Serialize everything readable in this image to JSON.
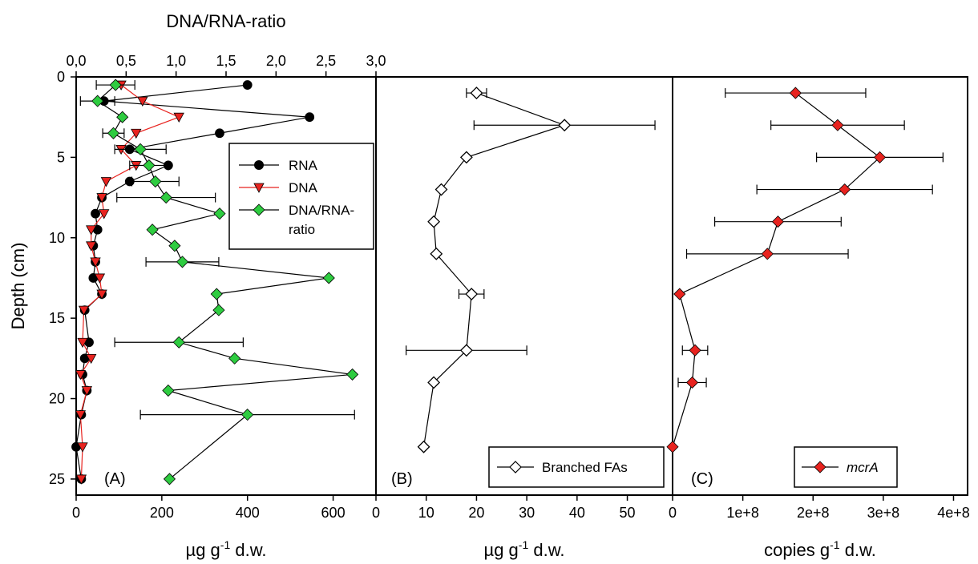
{
  "chart_data": [
    {
      "type": "scatter",
      "panel": "A",
      "panel_label": "(A)",
      "xlabel_main": "µg g",
      "xlabel_sup": "-1",
      "xlabel_tail": "  d.w.",
      "xlim": [
        0,
        700
      ],
      "xticks": [
        0,
        200,
        400,
        600
      ],
      "x2label": "DNA/RNA-ratio",
      "x2lim": [
        0,
        3.0
      ],
      "x2ticks": [
        "0,0",
        "0,5",
        "1,0",
        "1,5",
        "2,0",
        "2,5",
        "3,0"
      ],
      "ylabel": "Depth (cm)",
      "ylim": [
        0,
        26
      ],
      "yticks": [
        0,
        5,
        10,
        15,
        20,
        25
      ],
      "legend": [
        "RNA",
        "DNA",
        "DNA/RNA-",
        "ratio"
      ],
      "series": [
        {
          "name": "RNA",
          "axis": "bottom",
          "color": "#000000",
          "marker": "circle",
          "line_color": "#000000",
          "points": [
            {
              "x": 400,
              "y": 0.5,
              "err": 0
            },
            {
              "x": 65,
              "y": 1.5,
              "err": 0
            },
            {
              "x": 545,
              "y": 2.5,
              "err": 0
            },
            {
              "x": 335,
              "y": 3.5,
              "err": 0
            },
            {
              "x": 125,
              "y": 4.5,
              "err": 0
            },
            {
              "x": 215,
              "y": 5.5,
              "err": 0
            },
            {
              "x": 125,
              "y": 6.5,
              "err": 0
            },
            {
              "x": 60,
              "y": 7.5,
              "err": 0
            },
            {
              "x": 45,
              "y": 8.5,
              "err": 0
            },
            {
              "x": 50,
              "y": 9.5,
              "err": 0
            },
            {
              "x": 40,
              "y": 10.5,
              "err": 0
            },
            {
              "x": 45,
              "y": 11.5,
              "err": 0
            },
            {
              "x": 40,
              "y": 12.5,
              "err": 0
            },
            {
              "x": 60,
              "y": 13.5,
              "err": 0
            },
            {
              "x": 20,
              "y": 14.5,
              "err": 0
            },
            {
              "x": 30,
              "y": 16.5,
              "err": 0
            },
            {
              "x": 20,
              "y": 17.5,
              "err": 0
            },
            {
              "x": 15,
              "y": 18.5,
              "err": 0
            },
            {
              "x": 25,
              "y": 19.5,
              "err": 0
            },
            {
              "x": 12,
              "y": 21,
              "err": 0
            },
            {
              "x": 0,
              "y": 23,
              "err": 0
            },
            {
              "x": 12,
              "y": 25,
              "err": 0
            }
          ]
        },
        {
          "name": "DNA",
          "axis": "bottom",
          "color": "#e8231f",
          "marker": "triangle-down",
          "line_color": "#e8231f",
          "points": [
            {
              "x": 105,
              "y": 0.5,
              "err": 0
            },
            {
              "x": 155,
              "y": 1.5,
              "err": 0
            },
            {
              "x": 240,
              "y": 2.5,
              "err": 0
            },
            {
              "x": 140,
              "y": 3.5,
              "err": 0
            },
            {
              "x": 105,
              "y": 4.5,
              "err": 0
            },
            {
              "x": 140,
              "y": 5.5,
              "err": 0
            },
            {
              "x": 70,
              "y": 6.5,
              "err": 0
            },
            {
              "x": 60,
              "y": 7.5,
              "err": 0
            },
            {
              "x": 65,
              "y": 8.5,
              "err": 0
            },
            {
              "x": 35,
              "y": 9.5,
              "err": 0
            },
            {
              "x": 35,
              "y": 10.5,
              "err": 0
            },
            {
              "x": 45,
              "y": 11.5,
              "err": 0
            },
            {
              "x": 55,
              "y": 12.5,
              "err": 0
            },
            {
              "x": 60,
              "y": 13.5,
              "err": 0
            },
            {
              "x": 18,
              "y": 14.5,
              "err": 0
            },
            {
              "x": 15,
              "y": 16.5,
              "err": 0
            },
            {
              "x": 35,
              "y": 17.5,
              "err": 0
            },
            {
              "x": 10,
              "y": 18.5,
              "err": 0
            },
            {
              "x": 25,
              "y": 19.5,
              "err": 0
            },
            {
              "x": 10,
              "y": 21,
              "err": 0
            },
            {
              "x": 15,
              "y": 23,
              "err": 0
            },
            {
              "x": 12,
              "y": 25,
              "err": 0
            }
          ]
        },
        {
          "name": "DNA/RNA-ratio",
          "axis": "bottom",
          "color": "#2ecc40",
          "marker": "diamond",
          "line_color": "#000000",
          "points": [
            {
              "x": 92,
              "y": 0.5,
              "err": 45
            },
            {
              "x": 50,
              "y": 1.5,
              "err": 40
            },
            {
              "x": 108,
              "y": 2.5,
              "err": 0
            },
            {
              "x": 87,
              "y": 3.5,
              "err": 25
            },
            {
              "x": 150,
              "y": 4.5,
              "err": 60
            },
            {
              "x": 170,
              "y": 5.5,
              "err": 45
            },
            {
              "x": 185,
              "y": 6.5,
              "err": 55
            },
            {
              "x": 210,
              "y": 7.5,
              "err": 115
            },
            {
              "x": 335,
              "y": 8.5,
              "err": 0
            },
            {
              "x": 178,
              "y": 9.5,
              "err": 0
            },
            {
              "x": 230,
              "y": 10.5,
              "err": 0
            },
            {
              "x": 248,
              "y": 11.5,
              "err": 85
            },
            {
              "x": 590,
              "y": 12.5,
              "err": 0
            },
            {
              "x": 328,
              "y": 13.5,
              "err": 0
            },
            {
              "x": 333,
              "y": 14.5,
              "err": 0
            },
            {
              "x": 240,
              "y": 16.5,
              "err": 150
            },
            {
              "x": 370,
              "y": 17.5,
              "err": 0
            },
            {
              "x": 645,
              "y": 18.5,
              "err": 0
            },
            {
              "x": 215,
              "y": 19.5,
              "err": 0
            },
            {
              "x": 400,
              "y": 21,
              "err": 250
            },
            {
              "x": 218,
              "y": 25,
              "err": 0
            }
          ]
        }
      ]
    },
    {
      "type": "scatter",
      "panel": "B",
      "panel_label": "(B)",
      "xlabel_main": "µg g",
      "xlabel_sup": "-1",
      "xlabel_tail": "  d.w.",
      "xlim": [
        0,
        59
      ],
      "xticks": [
        0,
        10,
        20,
        30,
        40,
        50
      ],
      "ylim": [
        0,
        26
      ],
      "legend": [
        "Branched FAs"
      ],
      "series": [
        {
          "name": "Branched FAs",
          "color": "#ffffff",
          "marker": "diamond-open",
          "points": [
            {
              "x": 20,
              "y": 1,
              "err": 2
            },
            {
              "x": 37.5,
              "y": 3,
              "err": 18
            },
            {
              "x": 18,
              "y": 5,
              "err": 0
            },
            {
              "x": 13,
              "y": 7,
              "err": 0
            },
            {
              "x": 11.5,
              "y": 9,
              "err": 0
            },
            {
              "x": 12,
              "y": 11,
              "err": 0
            },
            {
              "x": 19,
              "y": 13.5,
              "err": 2.5
            },
            {
              "x": 18,
              "y": 17,
              "err": 12
            },
            {
              "x": 11.5,
              "y": 19,
              "err": 0
            },
            {
              "x": 9.5,
              "y": 23,
              "err": 0
            }
          ]
        }
      ]
    },
    {
      "type": "scatter",
      "panel": "C",
      "panel_label": "(C)",
      "xlabel_main": "copies g",
      "xlabel_sup": "-1",
      "xlabel_tail": "  d.w.",
      "xlim": [
        0,
        420000000.0
      ],
      "xticks": [
        0,
        100000000.0,
        200000000.0,
        300000000.0,
        400000000.0
      ],
      "xticklabels": [
        "0",
        "1e+8",
        "2e+8",
        "3e+8",
        "4e+8"
      ],
      "ylim": [
        0,
        26
      ],
      "legend": [
        "mcrA"
      ],
      "series": [
        {
          "name": "mcrA",
          "color": "#e8231f",
          "marker": "diamond",
          "points": [
            {
              "x": 175000000.0,
              "y": 1,
              "err": 100000000.0
            },
            {
              "x": 235000000.0,
              "y": 3,
              "err": 95000000.0
            },
            {
              "x": 295000000.0,
              "y": 5,
              "err": 90000000.0
            },
            {
              "x": 245000000.0,
              "y": 7,
              "err": 125000000.0
            },
            {
              "x": 150000000.0,
              "y": 9,
              "err": 90000000.0
            },
            {
              "x": 135000000.0,
              "y": 11,
              "err": 115000000.0
            },
            {
              "x": 10000000.0,
              "y": 13.5,
              "err": 0
            },
            {
              "x": 32000000.0,
              "y": 17,
              "err": 18000000.0
            },
            {
              "x": 28000000.0,
              "y": 19,
              "err": 20000000.0
            },
            {
              "x": 0,
              "y": 23,
              "err": 0
            }
          ]
        }
      ]
    }
  ],
  "colors": {
    "rna": "#000000",
    "dna": "#e8231f",
    "ratio": "#2ecc40",
    "mcra": "#e8231f",
    "open": "#ffffff"
  }
}
